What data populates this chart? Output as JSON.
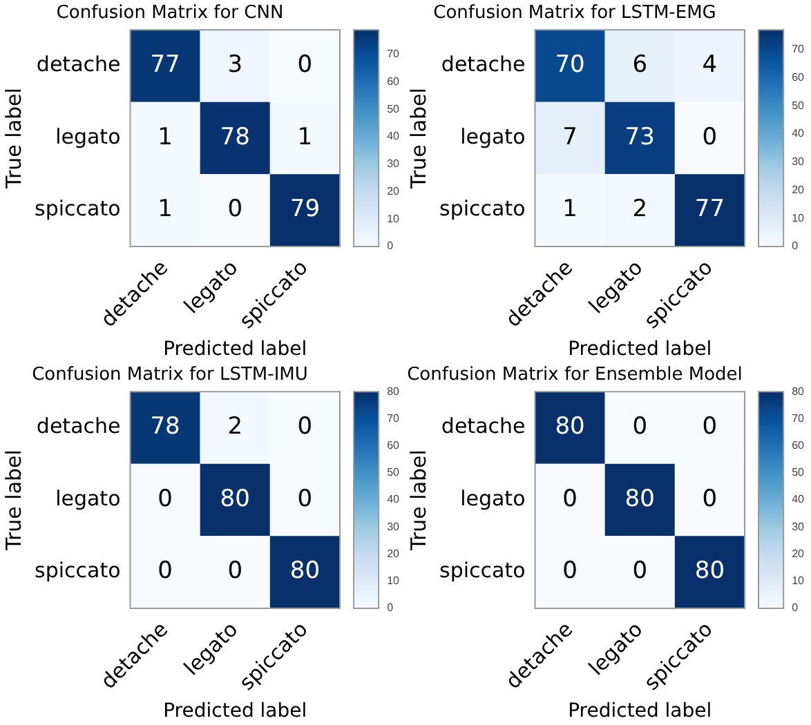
{
  "chart_data": [
    {
      "type": "heatmap",
      "title": "Confusion Matrix for CNN",
      "xlabel": "Predicted label",
      "ylabel": "True label",
      "categories": [
        "detache",
        "legato",
        "spiccato"
      ],
      "y_categories": [
        "detache",
        "legato",
        "spiccato"
      ],
      "cells": [
        [
          77,
          3,
          0
        ],
        [
          1,
          78,
          1
        ],
        [
          1,
          0,
          79
        ]
      ],
      "data_labels": true,
      "clim": [
        0,
        79
      ],
      "cticks": [
        0,
        10,
        20,
        30,
        40,
        50,
        60,
        70
      ]
    },
    {
      "type": "heatmap",
      "title": "Confusion Matrix for LSTM-EMG",
      "xlabel": "Predicted label",
      "ylabel": "True label",
      "categories": [
        "detache",
        "legato",
        "spiccato"
      ],
      "y_categories": [
        "detache",
        "legato",
        "spiccato"
      ],
      "cells": [
        [
          70,
          6,
          4
        ],
        [
          7,
          73,
          0
        ],
        [
          1,
          2,
          77
        ]
      ],
      "data_labels": true,
      "clim": [
        0,
        77
      ],
      "cticks": [
        0,
        10,
        20,
        30,
        40,
        50,
        60,
        70
      ]
    },
    {
      "type": "heatmap",
      "title": "Confusion Matrix for LSTM-IMU",
      "xlabel": "Predicted label",
      "ylabel": "True label",
      "categories": [
        "detache",
        "legato",
        "spiccato"
      ],
      "y_categories": [
        "detache",
        "legato",
        "spiccato"
      ],
      "cells": [
        [
          78,
          2,
          0
        ],
        [
          0,
          80,
          0
        ],
        [
          0,
          0,
          80
        ]
      ],
      "data_labels": true,
      "clim": [
        0,
        80
      ],
      "cticks": [
        0,
        10,
        20,
        30,
        40,
        50,
        60,
        70,
        80
      ]
    },
    {
      "type": "heatmap",
      "title": "Confusion Matrix for Ensemble Model",
      "xlabel": "Predicted label",
      "ylabel": "True label",
      "categories": [
        "detache",
        "legato",
        "spiccato"
      ],
      "y_categories": [
        "detache",
        "legato",
        "spiccato"
      ],
      "cells": [
        [
          80,
          0,
          0
        ],
        [
          0,
          80,
          0
        ],
        [
          0,
          0,
          80
        ]
      ],
      "data_labels": true,
      "clim": [
        0,
        80
      ],
      "cticks": [
        0,
        10,
        20,
        30,
        40,
        50,
        60,
        70,
        80
      ]
    }
  ]
}
